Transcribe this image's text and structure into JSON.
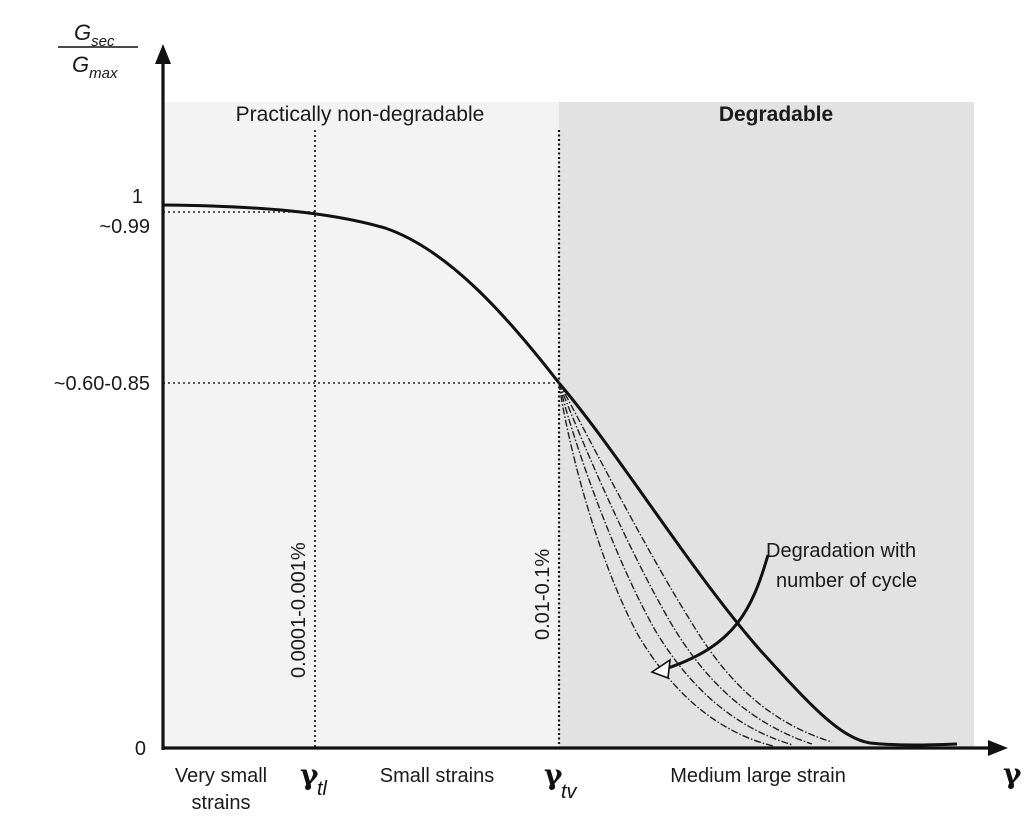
{
  "y_axis": {
    "label_numerator": "G",
    "label_numerator_sub": "sec",
    "label_denominator": "G",
    "label_denominator_sub": "max",
    "ticks": [
      "1",
      "~0.99",
      "~0.60-0.85",
      "0"
    ]
  },
  "x_axis": {
    "label": "γ"
  },
  "regions": {
    "left_title": "Practically non-degradable",
    "right_title": "Degradable",
    "left_fill": "#f3f3f3",
    "right_fill": "#e2e2e2"
  },
  "thresholds": {
    "tl": {
      "symbol": "γ",
      "sub": "tl",
      "range_label": "0.0001-0.001%"
    },
    "tv": {
      "symbol": "γ",
      "sub": "tv",
      "range_label": "0.01-0.1%"
    }
  },
  "zones": {
    "very_small_line1": "Very small",
    "very_small_line2": "strains",
    "small": "Small strains",
    "medium_large": "Medium large strain"
  },
  "annotation": {
    "line1": "Degradation with",
    "line2": "number of cycle"
  },
  "colors": {
    "curve": "#111111",
    "text": "#1a1a1a"
  }
}
